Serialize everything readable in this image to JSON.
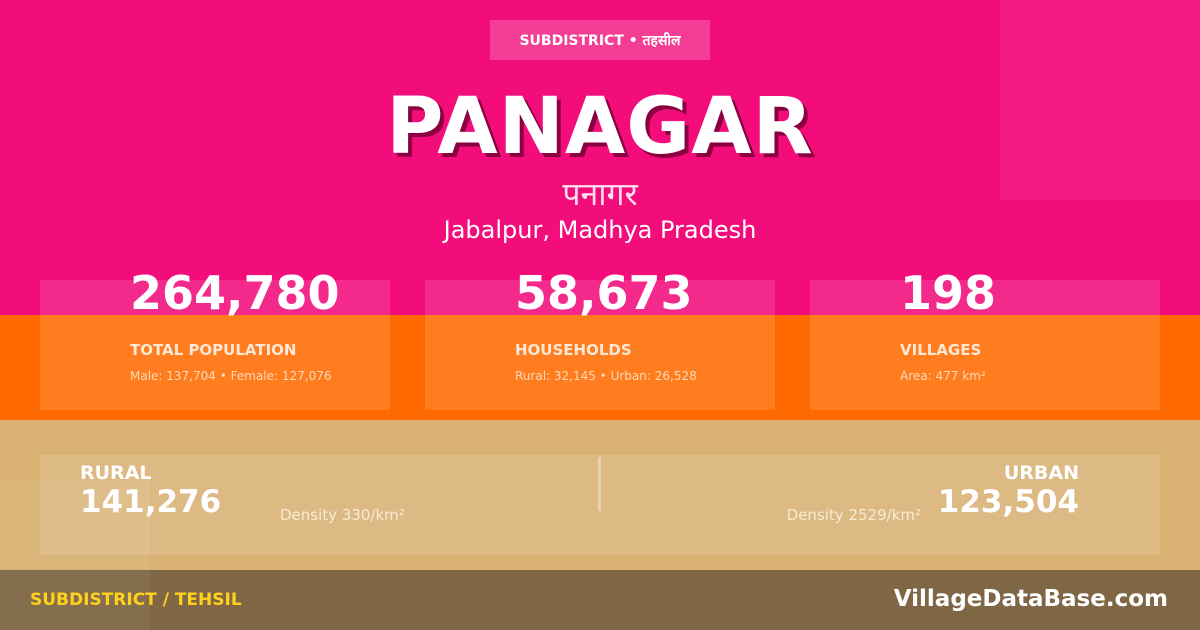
{
  "badge": "SUBDISTRICT • तहसील",
  "title": "PANAGAR",
  "title_hindi": "पनागर",
  "location": "Jabalpur, Madhya Pradesh",
  "stats": [
    {
      "value": "264,780",
      "label": "TOTAL POPULATION",
      "sub": "Male: 137,704 • Female: 127,076"
    },
    {
      "value": "58,673",
      "label": "HOUSEHOLDS",
      "sub": "Rural: 32,145 • Urban: 26,528"
    },
    {
      "value": "198",
      "label": "VILLAGES",
      "sub": "Area: 477 km²"
    }
  ],
  "rural": {
    "label": "RURAL",
    "value": "141,276",
    "density": "Density 330/km²"
  },
  "urban": {
    "label": "URBAN",
    "value": "123,504",
    "density": "Density 2529/km²"
  },
  "footer": {
    "left": "SUBDISTRICT / TEHSIL",
    "right": "VillageDataBase.com"
  },
  "colors": {
    "pink": "#f20d7b",
    "orange": "#ff6a00",
    "tan": "#d9b173",
    "footer": "#7f6745",
    "accent": "#ffd21a"
  }
}
